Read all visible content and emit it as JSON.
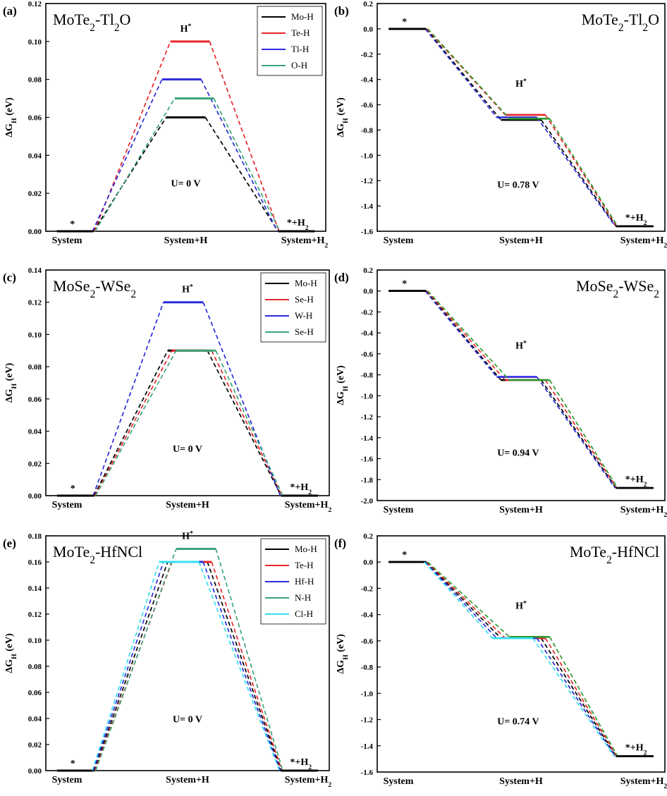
{
  "chart_data": [
    {
      "id": "a",
      "type": "line",
      "panel_label": "(a)",
      "title": "MoTe₂-Tl₂O",
      "ylabel": "ΔG_H (eV)",
      "ylim": [
        0.0,
        0.12
      ],
      "yticks": [
        "0.00",
        "0.02",
        "0.04",
        "0.06",
        "0.08",
        "0.10",
        "0.12"
      ],
      "categories": [
        "System",
        "System+H",
        "System+H₂"
      ],
      "legend": "top-right",
      "annotations": {
        "start": "*",
        "mid": "H*",
        "end": "*+H₂",
        "potential": "U= 0 V"
      },
      "series": [
        {
          "name": "Mo-H",
          "color": "#000000",
          "values": [
            0,
            0.06,
            0
          ]
        },
        {
          "name": "Te-H",
          "color": "#e8262a",
          "values": [
            0,
            0.1,
            0
          ]
        },
        {
          "name": "Tl-H",
          "color": "#2b2bdc",
          "values": [
            0,
            0.08,
            0
          ]
        },
        {
          "name": "O-H",
          "color": "#3aa57a",
          "values": [
            0,
            0.07,
            0
          ]
        }
      ]
    },
    {
      "id": "b",
      "type": "line",
      "panel_label": "(b)",
      "title": "MoTe₂-Tl₂O",
      "ylabel": "ΔG_H (eV)",
      "ylim": [
        -1.6,
        0.2
      ],
      "yticks": [
        "-1.6",
        "-1.4",
        "-1.2",
        "-1.0",
        "-0.8",
        "-0.6",
        "-0.4",
        "-0.2",
        "0.0",
        "0.2"
      ],
      "categories": [
        "System",
        "System+H",
        "System+H₂"
      ],
      "annotations": {
        "start": "*",
        "mid": "H*",
        "end": "*+H₂",
        "potential": "U= 0.78 V"
      },
      "series": [
        {
          "name": "Mo-H",
          "color": "#000000",
          "values": [
            0,
            -0.72,
            -1.56
          ]
        },
        {
          "name": "Te-H",
          "color": "#e8262a",
          "values": [
            0,
            -0.68,
            -1.56
          ]
        },
        {
          "name": "Tl-H",
          "color": "#2b2bdc",
          "values": [
            0,
            -0.7,
            -1.56
          ]
        },
        {
          "name": "O-H",
          "color": "#2e9a2e",
          "values": [
            0,
            -0.71,
            -1.56
          ]
        }
      ]
    },
    {
      "id": "c",
      "type": "line",
      "panel_label": "(c)",
      "title": "MoSe₂-WSe₂",
      "ylabel": "ΔG_H (eV)",
      "ylim": [
        0.0,
        0.14
      ],
      "yticks": [
        "0.00",
        "0.02",
        "0.04",
        "0.06",
        "0.08",
        "0.10",
        "0.12",
        "0.14"
      ],
      "categories": [
        "System",
        "System+H",
        "System+H₂"
      ],
      "legend": "top-right",
      "annotations": {
        "start": "*",
        "mid": "H*",
        "end": "*+H₂",
        "potential": "U= 0 V"
      },
      "series": [
        {
          "name": "Mo-H",
          "color": "#000000",
          "values": [
            0,
            0.09,
            0
          ]
        },
        {
          "name": "Se-H",
          "color": "#e8262a",
          "values": [
            0,
            0.09,
            0
          ]
        },
        {
          "name": "W-H",
          "color": "#2b2bdc",
          "values": [
            0,
            0.12,
            0
          ]
        },
        {
          "name": "Se-H",
          "color": "#3aa57a",
          "values": [
            0,
            0.09,
            0
          ]
        }
      ]
    },
    {
      "id": "d",
      "type": "line",
      "panel_label": "(d)",
      "title": "MoSe₂-WSe₂",
      "ylabel": "ΔG_H (eV)",
      "ylim": [
        -2.0,
        0.2
      ],
      "yticks": [
        "-2.0",
        "-1.8",
        "-1.6",
        "-1.4",
        "-1.2",
        "-1.0",
        "-0.8",
        "-0.6",
        "-0.4",
        "-0.2",
        "0.0",
        "0.2"
      ],
      "categories": [
        "System",
        "System+H",
        "System+H₂"
      ],
      "annotations": {
        "start": "*",
        "mid": "H*",
        "end": "*+H₂",
        "potential": "U= 0.94 V"
      },
      "series": [
        {
          "name": "Mo-H",
          "color": "#000000",
          "values": [
            0,
            -0.85,
            -1.88
          ]
        },
        {
          "name": "Se-H",
          "color": "#e8262a",
          "values": [
            0,
            -0.85,
            -1.88
          ]
        },
        {
          "name": "W-H",
          "color": "#2b2bdc",
          "values": [
            0,
            -0.82,
            -1.88
          ]
        },
        {
          "name": "Se-H",
          "color": "#2e9a2e",
          "values": [
            0,
            -0.85,
            -1.88
          ]
        }
      ]
    },
    {
      "id": "e",
      "type": "line",
      "panel_label": "(e)",
      "title": "MoTe₂-HfNCl",
      "ylabel": "ΔG_H (eV)",
      "ylim": [
        0.0,
        0.18
      ],
      "yticks": [
        "0.00",
        "0.02",
        "0.04",
        "0.06",
        "0.08",
        "0.10",
        "0.12",
        "0.14",
        "0.16",
        "0.18"
      ],
      "categories": [
        "System",
        "System+H",
        "System+H₂"
      ],
      "legend": "top-right",
      "annotations": {
        "start": "*",
        "mid": "H*",
        "end": "*+H₂",
        "potential": "U= 0 V"
      },
      "series": [
        {
          "name": "Mo-H",
          "color": "#000000",
          "values": [
            0,
            0.16,
            0
          ]
        },
        {
          "name": "Te-H",
          "color": "#e8262a",
          "values": [
            0,
            0.16,
            0
          ]
        },
        {
          "name": "Hf-H",
          "color": "#2b2bdc",
          "values": [
            0,
            0.16,
            0
          ]
        },
        {
          "name": "N-H",
          "color": "#3aa57a",
          "values": [
            0,
            0.17,
            0
          ]
        },
        {
          "name": "Cl-H",
          "color": "#33e0f0",
          "values": [
            0,
            0.16,
            0
          ]
        }
      ]
    },
    {
      "id": "f",
      "type": "line",
      "panel_label": "(f)",
      "title": "MoTe₂-HfNCl",
      "ylabel": "ΔG_H (eV)",
      "ylim": [
        -1.6,
        0.2
      ],
      "yticks": [
        "-1.6",
        "-1.4",
        "-1.2",
        "-1.0",
        "-0.8",
        "-0.6",
        "-0.4",
        "-0.2",
        "0.0",
        "0.2"
      ],
      "categories": [
        "System",
        "System+H",
        "System+H₂"
      ],
      "annotations": {
        "start": "*",
        "mid": "H*",
        "end": "*+H₂",
        "potential": "U= 0.74 V"
      },
      "series": [
        {
          "name": "Mo-H",
          "color": "#000000",
          "values": [
            0,
            -0.58,
            -1.48
          ]
        },
        {
          "name": "Te-H",
          "color": "#e8262a",
          "values": [
            0,
            -0.58,
            -1.48
          ]
        },
        {
          "name": "Hf-H",
          "color": "#2b2bdc",
          "values": [
            0,
            -0.58,
            -1.48
          ]
        },
        {
          "name": "N-H",
          "color": "#2e9a2e",
          "values": [
            0,
            -0.57,
            -1.48
          ]
        },
        {
          "name": "Cl-H",
          "color": "#33e0f0",
          "values": [
            0,
            -0.58,
            -1.48
          ]
        }
      ]
    }
  ]
}
